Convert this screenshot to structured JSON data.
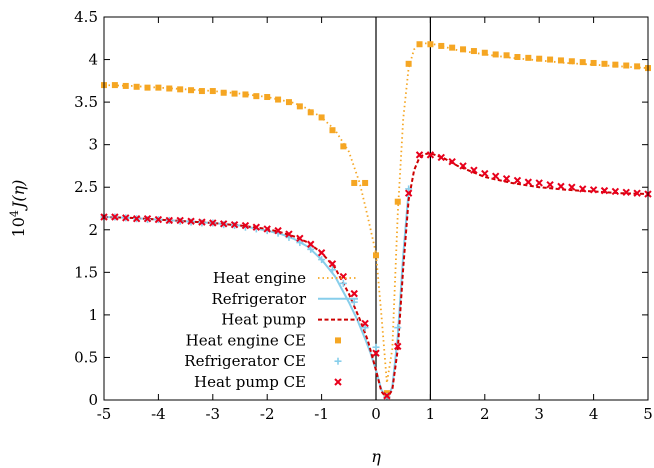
{
  "chart_data": {
    "type": "line",
    "title": "",
    "xlabel": "η",
    "ylabel_prefix": "10",
    "ylabel_exp": "4",
    "ylabel_func": "J(η)",
    "xlim": [
      -5,
      5
    ],
    "ylim": [
      0,
      4.5
    ],
    "x_ticks": [
      -5,
      -4,
      -3,
      -2,
      -1,
      0,
      1,
      2,
      3,
      4,
      5
    ],
    "x_tick_labels": [
      "-5",
      "-4",
      "-3",
      "-2",
      "-1",
      "0",
      "1",
      "2",
      "3",
      "4",
      "5"
    ],
    "y_ticks": [
      0,
      0.5,
      1,
      1.5,
      2,
      2.5,
      3,
      3.5,
      4,
      4.5
    ],
    "y_tick_labels": [
      "0",
      "0.5",
      "1",
      "1.5",
      "2",
      "2.5",
      "3",
      "3.5",
      "4",
      "4.5"
    ],
    "vertical_lines": [
      0,
      1
    ],
    "grid": false,
    "legend_position": "lower-left",
    "series": [
      {
        "name": "Heat engine",
        "style": "dotted",
        "color": "#f5a623",
        "x": [
          -5,
          -4.5,
          -4,
          -3.5,
          -3,
          -2.5,
          -2,
          -1.5,
          -1.25,
          -1,
          -0.75,
          -0.5,
          -0.3,
          -0.15,
          0,
          0.1,
          0.2,
          0.3,
          0.4,
          0.5,
          0.6,
          0.7,
          0.8,
          0.9,
          1,
          1.25,
          1.5,
          2,
          2.5,
          3,
          3.5,
          4,
          4.5,
          5
        ],
        "y": [
          3.7,
          3.69,
          3.67,
          3.65,
          3.63,
          3.6,
          3.56,
          3.49,
          3.42,
          3.32,
          3.17,
          2.92,
          2.55,
          2.15,
          1.72,
          1.0,
          0.2,
          0.6,
          2.2,
          3.3,
          3.9,
          4.12,
          4.18,
          4.19,
          4.19,
          4.15,
          4.11,
          4.06,
          4.02,
          3.99,
          3.96,
          3.94,
          3.92,
          3.9
        ]
      },
      {
        "name": "Refrigerator",
        "style": "solid",
        "color": "#87ceeb",
        "x": [
          -5,
          -4.5,
          -4,
          -3.5,
          -3,
          -2.5,
          -2,
          -1.75,
          -1.5,
          -1.25,
          -1,
          -0.75,
          -0.5,
          -0.35,
          -0.2,
          -0.1,
          0,
          0.1,
          0.2,
          0.3,
          0.4,
          0.5,
          0.6
        ],
        "y": [
          2.15,
          2.14,
          2.12,
          2.1,
          2.08,
          2.05,
          1.99,
          1.95,
          1.89,
          1.8,
          1.65,
          1.45,
          1.15,
          0.95,
          0.72,
          0.55,
          0.35,
          0.12,
          0.02,
          0.15,
          0.75,
          1.7,
          2.45
        ]
      },
      {
        "name": "Heat pump",
        "style": "dashed",
        "color": "#cc0000",
        "x": [
          -5,
          -4.5,
          -4,
          -3.5,
          -3,
          -2.5,
          -2,
          -1.75,
          -1.5,
          -1.25,
          -1,
          -0.75,
          -0.5,
          -0.3,
          -0.15,
          0,
          0.1,
          0.2,
          0.3,
          0.4,
          0.5,
          0.6,
          0.7,
          0.8,
          0.9,
          1,
          1.25,
          1.5,
          2,
          2.5,
          3,
          3.5,
          4,
          4.5,
          5
        ],
        "y": [
          2.15,
          2.14,
          2.12,
          2.1,
          2.08,
          2.05,
          2.01,
          1.97,
          1.92,
          1.85,
          1.73,
          1.55,
          1.25,
          0.95,
          0.7,
          0.35,
          0.1,
          0.02,
          0.12,
          0.6,
          1.55,
          2.35,
          2.7,
          2.85,
          2.89,
          2.9,
          2.84,
          2.75,
          2.62,
          2.55,
          2.5,
          2.47,
          2.45,
          2.43,
          2.42
        ]
      },
      {
        "name": "Heat engine CE",
        "style": "square",
        "color": "#f5a623",
        "x": [
          -5,
          -4.8,
          -4.6,
          -4.4,
          -4.2,
          -4,
          -3.8,
          -3.6,
          -3.4,
          -3.2,
          -3,
          -2.8,
          -2.6,
          -2.4,
          -2.2,
          -2,
          -1.8,
          -1.6,
          -1.4,
          -1.2,
          -1,
          -0.8,
          -0.6,
          -0.4,
          -0.2,
          0,
          0.2,
          0.4,
          0.6,
          0.8,
          1,
          1.2,
          1.4,
          1.6,
          1.8,
          2,
          2.2,
          2.4,
          2.6,
          2.8,
          3,
          3.2,
          3.4,
          3.6,
          3.8,
          4,
          4.2,
          4.4,
          4.6,
          4.8,
          5
        ],
        "y": [
          3.7,
          3.7,
          3.69,
          3.68,
          3.67,
          3.67,
          3.66,
          3.65,
          3.64,
          3.63,
          3.63,
          3.61,
          3.6,
          3.59,
          3.57,
          3.56,
          3.53,
          3.5,
          3.45,
          3.38,
          3.32,
          3.17,
          2.98,
          2.55,
          2.55,
          1.7,
          0.08,
          2.33,
          3.95,
          4.18,
          4.18,
          4.16,
          4.14,
          4.12,
          4.1,
          4.08,
          4.06,
          4.05,
          4.03,
          4.02,
          4.01,
          4.0,
          3.99,
          3.98,
          3.97,
          3.96,
          3.95,
          3.94,
          3.93,
          3.92,
          3.9
        ]
      },
      {
        "name": "Refrigerator CE",
        "style": "plus",
        "color": "#87ceeb",
        "x": [
          -5,
          -4.8,
          -4.6,
          -4.4,
          -4.2,
          -4,
          -3.8,
          -3.6,
          -3.4,
          -3.2,
          -3,
          -2.8,
          -2.6,
          -2.4,
          -2.2,
          -2,
          -1.8,
          -1.6,
          -1.4,
          -1.2,
          -1,
          -0.8,
          -0.6,
          -0.4,
          -0.2,
          0,
          0.2,
          0.4,
          0.6
        ],
        "y": [
          2.15,
          2.15,
          2.14,
          2.13,
          2.12,
          2.12,
          2.11,
          2.1,
          2.09,
          2.08,
          2.08,
          2.06,
          2.05,
          2.03,
          2.01,
          1.99,
          1.96,
          1.91,
          1.85,
          1.77,
          1.65,
          1.53,
          1.37,
          1.15,
          0.85,
          0.62,
          0.04,
          0.85,
          2.48
        ]
      },
      {
        "name": "Heat pump CE",
        "style": "cross",
        "color": "#e8001c",
        "x": [
          -5,
          -4.8,
          -4.6,
          -4.4,
          -4.2,
          -4,
          -3.8,
          -3.6,
          -3.4,
          -3.2,
          -3,
          -2.8,
          -2.6,
          -2.4,
          -2.2,
          -2,
          -1.8,
          -1.6,
          -1.4,
          -1.2,
          -1,
          -0.8,
          -0.6,
          -0.4,
          -0.2,
          0,
          0.2,
          0.4,
          0.6,
          0.8,
          1,
          1.2,
          1.4,
          1.6,
          1.8,
          2,
          2.2,
          2.4,
          2.6,
          2.8,
          3,
          3.2,
          3.4,
          3.6,
          3.8,
          4,
          4.2,
          4.4,
          4.6,
          4.8,
          5
        ],
        "y": [
          2.15,
          2.15,
          2.14,
          2.13,
          2.13,
          2.12,
          2.11,
          2.11,
          2.1,
          2.09,
          2.08,
          2.07,
          2.06,
          2.05,
          2.03,
          2.01,
          1.99,
          1.95,
          1.9,
          1.83,
          1.73,
          1.6,
          1.45,
          1.25,
          0.9,
          0.55,
          0.05,
          0.63,
          2.43,
          2.88,
          2.88,
          2.85,
          2.8,
          2.75,
          2.7,
          2.66,
          2.63,
          2.6,
          2.58,
          2.56,
          2.55,
          2.53,
          2.51,
          2.5,
          2.48,
          2.47,
          2.46,
          2.45,
          2.44,
          2.43,
          2.42
        ]
      }
    ]
  }
}
